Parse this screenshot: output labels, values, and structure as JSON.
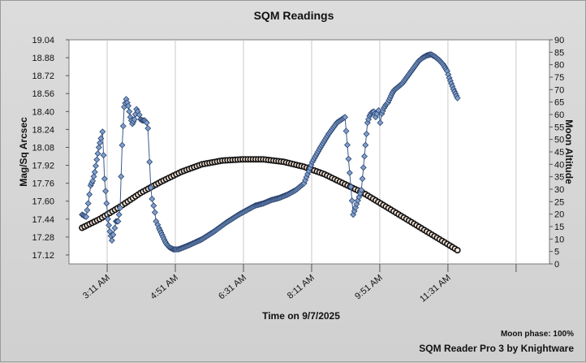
{
  "chart_data": {
    "type": "line",
    "title": "SQM Readings",
    "xlabel": "Time on 9/7/2025",
    "ylabel": "Mag/Sq Arcsec",
    "y2label": "Moon Altitude",
    "x_unit": "hours (local time)",
    "xlim": [
      2.25,
      14.0
    ],
    "ylim": [
      17.04,
      19.04
    ],
    "y2lim": [
      0,
      90
    ],
    "x_ticks": [
      {
        "x": 3.1833,
        "label": "3:11 AM"
      },
      {
        "x": 4.85,
        "label": "4:51 AM"
      },
      {
        "x": 6.5167,
        "label": "6:31 AM"
      },
      {
        "x": 8.1833,
        "label": "8:11 AM"
      },
      {
        "x": 9.85,
        "label": "9:51 AM"
      },
      {
        "x": 11.5167,
        "label": "11:31 AM"
      }
    ],
    "y_ticks": [
      "17.12",
      "17.28",
      "17.44",
      "17.60",
      "17.76",
      "17.92",
      "18.08",
      "18.24",
      "18.40",
      "18.56",
      "18.72",
      "18.88",
      "19.04"
    ],
    "y_tick_values": [
      17.12,
      17.28,
      17.44,
      17.6,
      17.76,
      17.92,
      18.08,
      18.24,
      18.4,
      18.56,
      18.72,
      18.88,
      19.04
    ],
    "y2_ticks": [
      "0",
      "5",
      "10",
      "15",
      "20",
      "25",
      "30",
      "35",
      "40",
      "45",
      "50",
      "55",
      "60",
      "65",
      "70",
      "75",
      "80",
      "85",
      "90"
    ],
    "y2_tick_values": [
      0,
      5,
      10,
      15,
      20,
      25,
      30,
      35,
      40,
      45,
      50,
      55,
      60,
      65,
      70,
      75,
      80,
      85,
      90
    ],
    "grid": "vertical",
    "series": [
      {
        "axis": "left",
        "marker": "diamond",
        "color": "#3d5c8c",
        "x": [
          2.57,
          2.62,
          2.67,
          2.72,
          2.78,
          2.83,
          2.88,
          2.93,
          2.98,
          3.03,
          3.07,
          3.12,
          3.17,
          3.2,
          3.25,
          3.3,
          3.33,
          3.37,
          3.4,
          3.45,
          3.5,
          3.55,
          3.6,
          3.65,
          3.7,
          3.75,
          3.8,
          3.85,
          3.9,
          3.93,
          3.97,
          4.0,
          4.05,
          4.1,
          4.15,
          4.18,
          4.22,
          4.25,
          4.28,
          4.32,
          4.35,
          4.38,
          4.42,
          4.45,
          4.5,
          4.55,
          4.6,
          4.65,
          4.7,
          4.75,
          4.8,
          4.85,
          4.88,
          4.92,
          5.0,
          5.2,
          5.5,
          5.8,
          6.1,
          6.4,
          6.6,
          6.8,
          7.0,
          7.2,
          7.4,
          7.6,
          7.8,
          8.0,
          8.2,
          8.4,
          8.6,
          8.8,
          9.0,
          9.2,
          9.4,
          9.5,
          9.55,
          9.6,
          9.65,
          9.7,
          9.73,
          9.75,
          9.78,
          9.82,
          9.86,
          9.9,
          9.95,
          10.0,
          10.05,
          10.1,
          10.15,
          10.2,
          10.3,
          10.4,
          10.5,
          10.6,
          10.7,
          10.8,
          10.9,
          11.0,
          11.1,
          11.2,
          11.3,
          11.4,
          11.5,
          11.55,
          11.6,
          11.65,
          11.7,
          11.75
        ],
        "y": [
          17.48,
          17.47,
          17.46,
          17.58,
          17.74,
          17.78,
          17.86,
          17.97,
          18.08,
          18.16,
          18.22,
          17.8,
          17.58,
          17.44,
          17.33,
          17.25,
          17.3,
          17.36,
          17.42,
          17.42,
          17.54,
          18.1,
          18.44,
          18.51,
          18.45,
          18.35,
          18.29,
          18.33,
          18.42,
          18.4,
          18.37,
          18.33,
          18.32,
          18.32,
          18.3,
          18.25,
          17.95,
          17.72,
          17.62,
          17.56,
          17.5,
          17.42,
          17.39,
          17.36,
          17.32,
          17.28,
          17.24,
          17.21,
          17.19,
          17.18,
          17.17,
          17.17,
          17.17,
          17.17,
          17.18,
          17.21,
          17.26,
          17.33,
          17.41,
          17.48,
          17.52,
          17.56,
          17.58,
          17.61,
          17.63,
          17.66,
          17.7,
          17.76,
          17.95,
          18.08,
          18.2,
          18.3,
          18.35,
          17.48,
          17.7,
          18.1,
          18.3,
          18.36,
          18.39,
          18.4,
          18.38,
          18.35,
          18.38,
          18.41,
          18.3,
          18.38,
          18.43,
          18.46,
          18.48,
          18.52,
          18.56,
          18.59,
          18.62,
          18.65,
          18.7,
          18.75,
          18.8,
          18.85,
          18.88,
          18.9,
          18.91,
          18.89,
          18.86,
          18.82,
          18.76,
          18.7,
          18.65,
          18.6,
          18.56,
          18.52
        ]
      },
      {
        "axis": "right",
        "marker": "circle",
        "color": "#000000",
        "x": [
          2.57,
          3.0,
          3.5,
          4.0,
          4.5,
          5.0,
          5.5,
          6.0,
          6.5,
          7.0,
          7.5,
          8.0,
          8.5,
          9.0,
          9.5,
          10.0,
          10.5,
          11.0,
          11.5,
          11.75
        ],
        "y": [
          14.5,
          18,
          23,
          28.5,
          33,
          37,
          40,
          41.5,
          42,
          42,
          41,
          39,
          36,
          32,
          28,
          23,
          18,
          13,
          8,
          5.5
        ]
      }
    ],
    "annotations": [
      "Moon phase: 100%",
      "SQM Reader Pro 3 by Knightware"
    ]
  }
}
